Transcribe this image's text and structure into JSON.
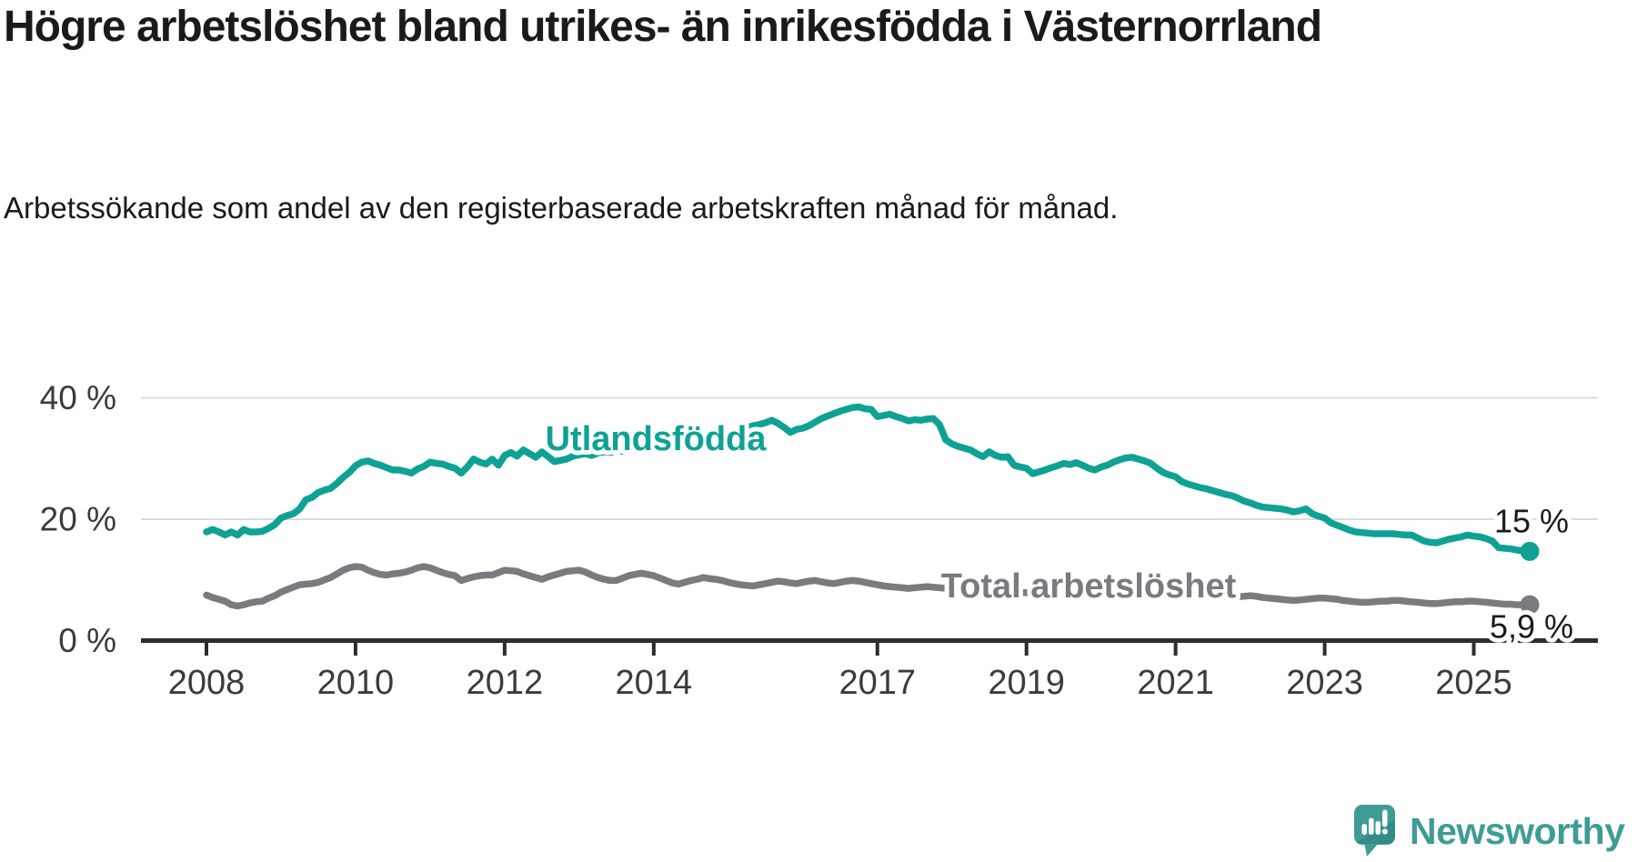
{
  "title": "Högre arbetslöshet bland utrikes- än inrikesfödda i Västernorrland",
  "subtitle": "Arbetssökande som andel av den registerbaserade arbetskraften månad för månad.",
  "branding": {
    "logo_icon": "newsworthy-speech-bubble-bar-chart-icon",
    "logo_text": "Newsworthy",
    "brand_color": "#3f9c95"
  },
  "chart_data": {
    "type": "line",
    "title": "Högre arbetslöshet bland utrikes- än inrikesfödda i Västernorrland",
    "subtitle": "Arbetssökande som andel av den registerbaserade arbetskraften månad för månad.",
    "grid": true,
    "legend_position": "inline-labels-on-lines",
    "x_axis": {
      "start_year": 2008,
      "frequency": "monthly",
      "end": "2025-10",
      "ticks": [
        {
          "label": "2008",
          "year": 2008
        },
        {
          "label": "2010",
          "year": 2010
        },
        {
          "label": "2012",
          "year": 2012
        },
        {
          "label": "2014",
          "year": 2014
        },
        {
          "label": "2017",
          "year": 2017
        },
        {
          "label": "2019",
          "year": 2019
        },
        {
          "label": "2021",
          "year": 2021
        },
        {
          "label": "2023",
          "year": 2023
        },
        {
          "label": "2025",
          "year": 2025
        }
      ]
    },
    "y_axis": {
      "unit": "%",
      "range": [
        0,
        44
      ],
      "ticks": [
        {
          "label": "40 %",
          "value": 40
        },
        {
          "label": "20 %",
          "value": 20
        },
        {
          "label": "0 %",
          "value": 0
        }
      ]
    },
    "series": [
      {
        "name": "Utlandsfödda",
        "color": "#0fa294",
        "end_label": "15 %",
        "last_value": 14.7,
        "values": [
          17.9,
          18.3,
          17.9,
          17.4,
          17.9,
          17.4,
          18.3,
          17.9,
          17.9,
          18.0,
          18.5,
          19.1,
          20.2,
          20.6,
          20.9,
          21.7,
          23.2,
          23.6,
          24.4,
          24.8,
          25.1,
          25.9,
          26.9,
          27.7,
          28.8,
          29.4,
          29.6,
          29.2,
          28.9,
          28.5,
          28.1,
          28.1,
          27.9,
          27.6,
          28.3,
          28.7,
          29.4,
          29.2,
          29.1,
          28.7,
          28.4,
          27.6,
          28.6,
          29.9,
          29.4,
          29.1,
          29.9,
          28.9,
          30.5,
          31.0,
          30.4,
          31.4,
          30.8,
          30.2,
          31.1,
          30.3,
          29.5,
          29.7,
          29.9,
          30.4,
          30.6,
          30.8,
          30.5,
          30.9,
          31.1,
          31.0,
          31.3,
          31.2,
          31.5,
          31.7,
          31.9,
          32.1,
          32.3,
          32.5,
          32.2,
          32.6,
          32.9,
          32.7,
          33.1,
          33.4,
          33.2,
          33.6,
          33.9,
          34.2,
          34.4,
          34.6,
          34.8,
          35.1,
          35.4,
          35.6,
          35.9,
          36.3,
          35.8,
          35.1,
          34.3,
          34.8,
          35.0,
          35.4,
          36.0,
          36.6,
          37.0,
          37.4,
          37.8,
          38.1,
          38.4,
          38.5,
          38.2,
          38.1,
          36.9,
          37.1,
          37.3,
          36.9,
          36.6,
          36.2,
          36.4,
          36.3,
          36.5,
          36.6,
          35.6,
          33.1,
          32.4,
          32.0,
          31.7,
          31.4,
          30.8,
          30.3,
          31.1,
          30.5,
          30.2,
          30.3,
          28.9,
          28.6,
          28.4,
          27.5,
          27.8,
          28.1,
          28.5,
          28.8,
          29.2,
          29.0,
          29.3,
          28.9,
          28.4,
          28.1,
          28.6,
          28.9,
          29.4,
          29.8,
          30.1,
          30.2,
          29.9,
          29.6,
          29.2,
          28.4,
          27.7,
          27.3,
          27.0,
          26.2,
          25.8,
          25.5,
          25.2,
          25.0,
          24.7,
          24.4,
          24.1,
          23.9,
          23.5,
          23.0,
          22.7,
          22.3,
          22.0,
          21.9,
          21.8,
          21.7,
          21.5,
          21.2,
          21.4,
          21.7,
          20.9,
          20.5,
          20.2,
          19.4,
          19.0,
          18.6,
          18.2,
          17.9,
          17.8,
          17.7,
          17.6,
          17.6,
          17.6,
          17.6,
          17.5,
          17.4,
          17.4,
          16.9,
          16.4,
          16.2,
          16.1,
          16.4,
          16.7,
          16.9,
          17.1,
          17.4,
          17.2,
          17.1,
          16.8,
          16.4,
          15.3,
          15.2,
          15.1,
          14.9,
          14.8,
          14.7
        ]
      },
      {
        "name": "Total arbetslöshet",
        "color": "#7a7a80",
        "end_label": "5,9 %",
        "last_value": 5.9,
        "values": [
          7.5,
          7.1,
          6.8,
          6.5,
          5.9,
          5.7,
          5.9,
          6.2,
          6.4,
          6.5,
          7.0,
          7.4,
          8.0,
          8.4,
          8.8,
          9.2,
          9.3,
          9.4,
          9.6,
          10.0,
          10.4,
          11.0,
          11.6,
          12.0,
          12.2,
          12.1,
          11.6,
          11.2,
          10.9,
          10.8,
          11.0,
          11.1,
          11.3,
          11.6,
          12.0,
          12.2,
          12.0,
          11.6,
          11.2,
          10.9,
          10.7,
          9.9,
          10.2,
          10.5,
          10.7,
          10.8,
          10.8,
          11.2,
          11.6,
          11.5,
          11.4,
          11.0,
          10.7,
          10.4,
          10.1,
          10.5,
          10.8,
          11.1,
          11.4,
          11.5,
          11.6,
          11.3,
          10.8,
          10.4,
          10.1,
          9.9,
          9.9,
          10.3,
          10.7,
          10.9,
          11.1,
          10.9,
          10.7,
          10.3,
          9.9,
          9.5,
          9.3,
          9.6,
          9.9,
          10.1,
          10.4,
          10.2,
          10.1,
          9.9,
          9.6,
          9.4,
          9.2,
          9.1,
          9.0,
          9.2,
          9.4,
          9.6,
          9.8,
          9.7,
          9.5,
          9.4,
          9.6,
          9.8,
          9.9,
          9.7,
          9.5,
          9.4,
          9.6,
          9.8,
          9.9,
          9.8,
          9.6,
          9.4,
          9.2,
          9.0,
          8.9,
          8.8,
          8.7,
          8.6,
          8.7,
          8.8,
          8.9,
          8.8,
          8.7,
          8.6,
          8.5,
          8.4,
          8.2,
          8.1,
          8.0,
          7.9,
          8.0,
          8.1,
          8.2,
          8.1,
          8.0,
          7.9,
          7.9,
          7.8,
          7.7,
          7.6,
          7.6,
          7.7,
          7.8,
          7.9,
          8.0,
          7.9,
          7.9,
          8.0,
          8.2,
          8.4,
          8.8,
          9.2,
          9.4,
          9.5,
          9.4,
          9.2,
          9.0,
          8.8,
          8.6,
          8.5,
          8.4,
          8.3,
          8.1,
          7.9,
          7.7,
          7.6,
          7.5,
          7.4,
          7.3,
          7.2,
          7.2,
          7.3,
          7.4,
          7.3,
          7.1,
          7.0,
          6.9,
          6.8,
          6.7,
          6.6,
          6.7,
          6.8,
          6.9,
          7.0,
          7.0,
          6.9,
          6.8,
          6.6,
          6.5,
          6.4,
          6.3,
          6.3,
          6.4,
          6.5,
          6.5,
          6.6,
          6.6,
          6.5,
          6.4,
          6.3,
          6.2,
          6.1,
          6.1,
          6.2,
          6.3,
          6.4,
          6.4,
          6.5,
          6.5,
          6.4,
          6.3,
          6.2,
          6.1,
          6.0,
          6.0,
          5.9,
          5.9,
          5.9
        ]
      }
    ]
  }
}
